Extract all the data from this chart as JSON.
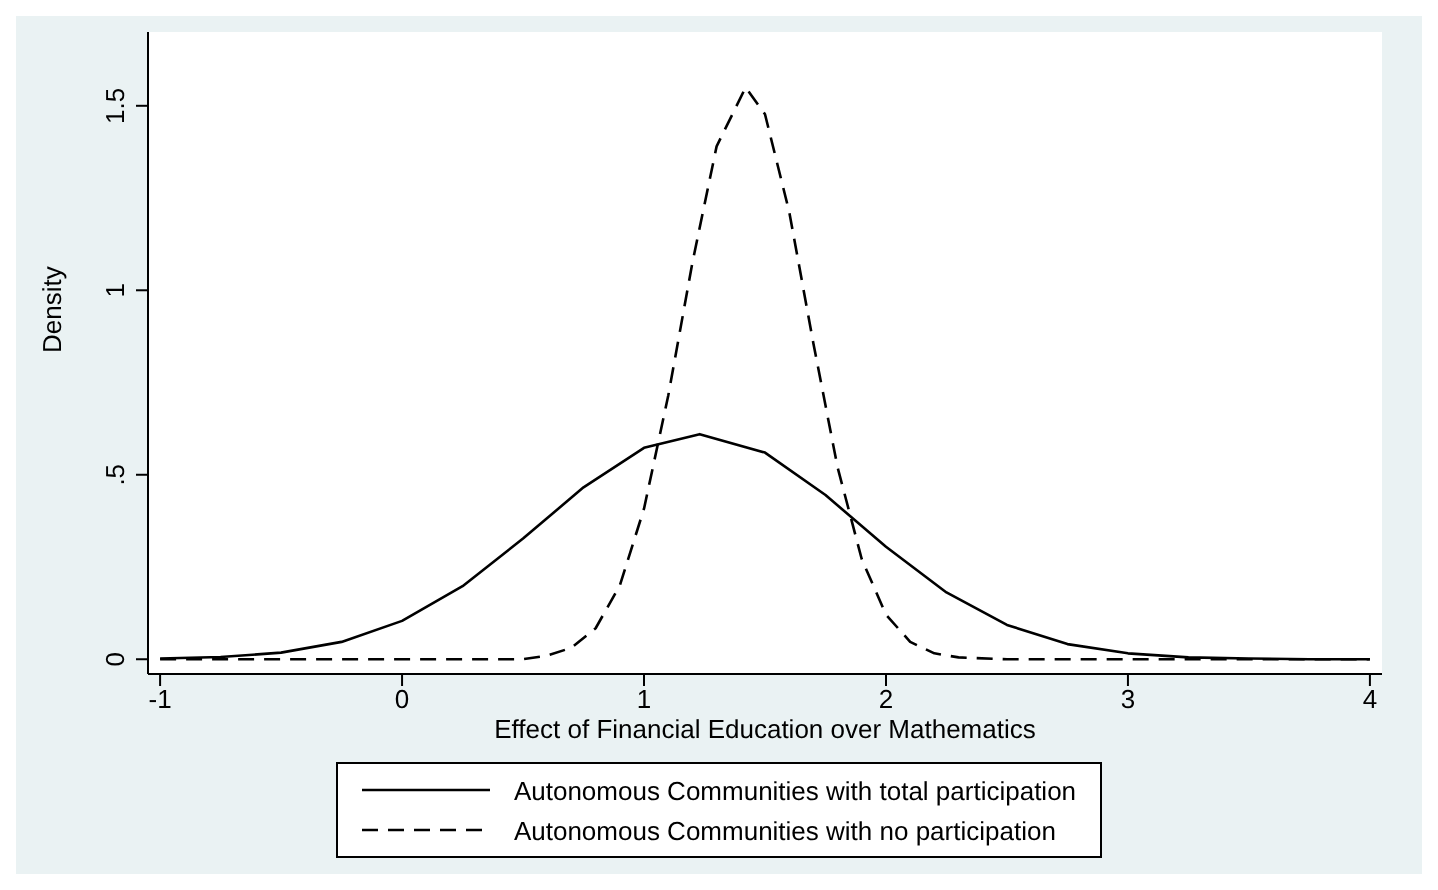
{
  "chart_data": {
    "type": "line",
    "xlabel": "Effect of Financial Education over Mathematics",
    "ylabel": "Density",
    "xlim": [
      -1.05,
      4.05
    ],
    "xticks": [
      -1,
      0,
      1,
      2,
      3,
      4
    ],
    "ylim": [
      -0.04,
      1.7
    ],
    "yticks": [
      0,
      {
        "value": 0.5,
        "label": ".5"
      },
      1,
      1.5
    ],
    "grid": false,
    "legend": "bottom",
    "marker": "none",
    "series": [
      {
        "name": "Autonomous Communities with total participation",
        "color": "#000000",
        "line_style": "solid",
        "x": [
          -1,
          -0.75,
          -0.5,
          -0.25,
          0,
          0.25,
          0.5,
          0.75,
          1,
          1.23,
          1.5,
          1.75,
          2,
          2.25,
          2.5,
          2.75,
          3,
          3.25,
          3.5,
          3.75,
          4
        ],
        "values": [
          0.002,
          0.006,
          0.018,
          0.047,
          0.104,
          0.198,
          0.327,
          0.466,
          0.573,
          0.61,
          0.56,
          0.445,
          0.305,
          0.181,
          0.093,
          0.041,
          0.016,
          0.005,
          0.002,
          0,
          0
        ]
      },
      {
        "name": "Autonomous Communities with no participation",
        "color": "#000000",
        "line_style": "dashed",
        "x": [
          -1,
          0,
          0.5,
          0.6,
          0.7,
          0.8,
          0.9,
          1,
          1.1,
          1.2,
          1.3,
          1.42,
          1.5,
          1.6,
          1.7,
          1.8,
          1.9,
          2,
          2.1,
          2.2,
          2.3,
          2.5,
          3,
          4
        ],
        "values": [
          0,
          0,
          0,
          0.01,
          0.031,
          0.084,
          0.2,
          0.408,
          0.714,
          1.075,
          1.39,
          1.55,
          1.477,
          1.213,
          0.856,
          0.52,
          0.271,
          0.121,
          0.047,
          0.016,
          0.005,
          0,
          0,
          0
        ]
      }
    ]
  }
}
